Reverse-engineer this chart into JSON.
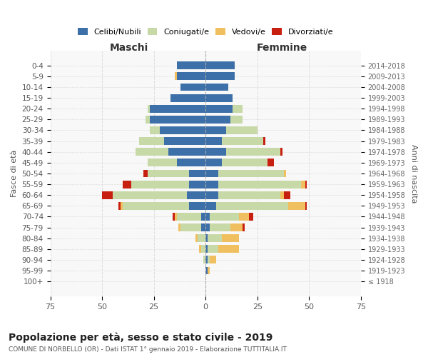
{
  "age_groups": [
    "100+",
    "95-99",
    "90-94",
    "85-89",
    "80-84",
    "75-79",
    "70-74",
    "65-69",
    "60-64",
    "55-59",
    "50-54",
    "45-49",
    "40-44",
    "35-39",
    "30-34",
    "25-29",
    "20-24",
    "15-19",
    "10-14",
    "5-9",
    "0-4"
  ],
  "birth_years": [
    "≤ 1918",
    "1919-1923",
    "1924-1928",
    "1929-1933",
    "1934-1938",
    "1939-1943",
    "1944-1948",
    "1949-1953",
    "1954-1958",
    "1959-1963",
    "1964-1968",
    "1969-1973",
    "1974-1978",
    "1979-1983",
    "1984-1988",
    "1989-1993",
    "1994-1998",
    "1999-2003",
    "2004-2008",
    "2009-2013",
    "2014-2018"
  ],
  "colors": {
    "celibi": "#3d6fa8",
    "coniugati": "#c8d9a8",
    "vedovi": "#f0c060",
    "divorziati": "#c82010"
  },
  "males": {
    "celibi": [
      0,
      0,
      0,
      0,
      0,
      2,
      2,
      8,
      9,
      8,
      8,
      14,
      18,
      20,
      22,
      27,
      27,
      17,
      12,
      14,
      14
    ],
    "coniugati": [
      0,
      0,
      1,
      2,
      4,
      10,
      12,
      32,
      36,
      28,
      20,
      14,
      16,
      12,
      5,
      2,
      1,
      0,
      0,
      0,
      0
    ],
    "vedovi": [
      0,
      0,
      0,
      1,
      1,
      1,
      1,
      1,
      0,
      0,
      0,
      0,
      0,
      0,
      0,
      0,
      0,
      0,
      0,
      1,
      0
    ],
    "divorziati": [
      0,
      0,
      0,
      0,
      0,
      0,
      1,
      1,
      5,
      4,
      2,
      0,
      0,
      0,
      0,
      0,
      0,
      0,
      0,
      0,
      0
    ]
  },
  "females": {
    "nubili": [
      0,
      1,
      1,
      1,
      1,
      2,
      2,
      5,
      6,
      6,
      6,
      8,
      10,
      8,
      10,
      12,
      13,
      13,
      11,
      14,
      14
    ],
    "coniugate": [
      0,
      0,
      1,
      5,
      7,
      10,
      14,
      35,
      30,
      40,
      32,
      22,
      26,
      20,
      15,
      6,
      5,
      0,
      0,
      0,
      0
    ],
    "vedove": [
      0,
      1,
      3,
      10,
      8,
      6,
      5,
      8,
      2,
      2,
      1,
      0,
      0,
      0,
      0,
      0,
      0,
      0,
      0,
      0,
      0
    ],
    "divorziate": [
      0,
      0,
      0,
      0,
      0,
      1,
      2,
      1,
      3,
      1,
      0,
      3,
      1,
      1,
      0,
      0,
      0,
      0,
      0,
      0,
      0
    ]
  },
  "xlim": 75,
  "title": "Popolazione per età, sesso e stato civile - 2019",
  "subtitle": "COMUNE DI NORBELLO (OR) - Dati ISTAT 1° gennaio 2019 - Elaborazione TUTTITALIA.IT",
  "ylabel_left": "Fasce di età",
  "ylabel_right": "Anni di nascita",
  "xlabel_left": "Maschi",
  "xlabel_right": "Femmine",
  "bg_color": "#f8f8f8",
  "grid_color": "#dddddd"
}
